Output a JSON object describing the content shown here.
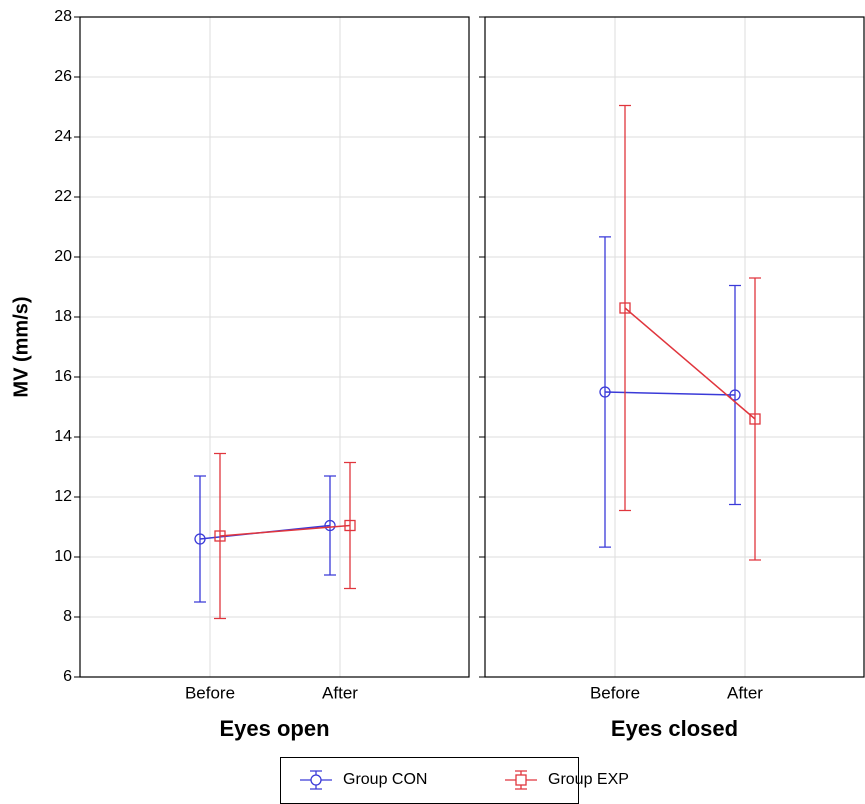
{
  "chart_data": {
    "type": "errorbar",
    "ylabel": "MV (mm/s)",
    "ylim": [
      6,
      28
    ],
    "yticks": [
      6,
      8,
      10,
      12,
      14,
      16,
      18,
      20,
      22,
      24,
      26,
      28
    ],
    "grid": true,
    "series": [
      {
        "name": "Group CON",
        "color": "#3a3ad8",
        "marker": "circle"
      },
      {
        "name": "Group EXP",
        "color": "#e0353d",
        "marker": "square"
      }
    ],
    "panels": [
      {
        "title": "Eyes open",
        "categories": [
          "Before",
          "After"
        ],
        "series": [
          {
            "values": [
              10.6,
              11.05
            ],
            "errors": [
              2.1,
              1.65
            ]
          },
          {
            "values": [
              10.7,
              11.05
            ],
            "errors": [
              2.75,
              2.1
            ]
          }
        ]
      },
      {
        "title": "Eyes closed",
        "categories": [
          "Before",
          "After"
        ],
        "series": [
          {
            "values": [
              15.5,
              15.4
            ],
            "errors": [
              5.17,
              3.65
            ]
          },
          {
            "values": [
              18.3,
              14.6
            ],
            "errors": [
              6.75,
              4.7
            ]
          }
        ]
      }
    ]
  }
}
